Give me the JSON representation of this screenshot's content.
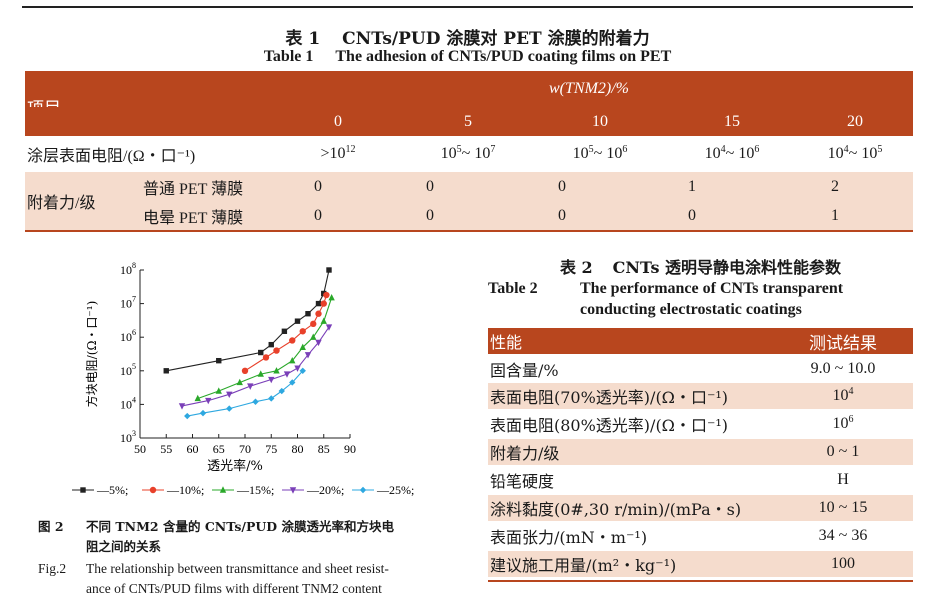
{
  "table1": {
    "caption_num_cn": "表 1",
    "caption_cn": "CNTs/PUD 涂膜对 PET 涂膜的附着力",
    "caption_num_en": "Table 1",
    "caption_en": "The adhesion of CNTs/PUD coating films on PET",
    "header_item": "项目",
    "header_group": "w(TNM2)/%",
    "columns": [
      "0",
      "5",
      "10",
      "15",
      "20"
    ],
    "resistance_label": "涂层表面电阻/(Ω・口⁻¹)",
    "resistance_values": [
      {
        "prefix": ">10",
        "exp": "12"
      },
      {
        "prefix": "10",
        "exp": "5",
        "mid": " ~ 10",
        "exp2": "7"
      },
      {
        "prefix": "10",
        "exp": "5",
        "mid": " ~ 10",
        "exp2": "6"
      },
      {
        "prefix": "10",
        "exp": "4",
        "mid": " ~ 10",
        "exp2": "6"
      },
      {
        "prefix": "10",
        "exp": "4",
        "mid": " ~ 10",
        "exp2": "5"
      }
    ],
    "adhesion_label": "附着力/级",
    "adhesion_rows": [
      {
        "label": "普通 PET 薄膜",
        "values": [
          "0",
          "0",
          "0",
          "1",
          "2"
        ]
      },
      {
        "label": "电晕 PET 薄膜",
        "values": [
          "0",
          "0",
          "0",
          "0",
          "1"
        ]
      }
    ]
  },
  "figure": {
    "caption_num_cn": "图 2",
    "caption_cn_line1": "不同 TNM2 含量的 CNTs/PUD 涂膜透光率和方块电",
    "caption_cn_line2": "阻之间的关系",
    "caption_num_en": "Fig.2",
    "caption_en_line1": "The relationship between transmittance and sheet resist-",
    "caption_en_line2": "ance of CNTs/PUD films with different TNM2 content"
  },
  "chart_data": {
    "type": "line",
    "xlabel": "透光率/%",
    "ylabel": "方块电阻/(Ω・口⁻¹)",
    "xlim": [
      50,
      90
    ],
    "ylim_log10": [
      3,
      8
    ],
    "xticks": [
      50,
      55,
      60,
      65,
      70,
      75,
      80,
      85,
      90
    ],
    "yticks_exp": [
      3,
      4,
      5,
      6,
      7,
      8
    ],
    "ytick_base": "10",
    "legend_position": "bottom",
    "series": [
      {
        "name": "5%",
        "color": "#222222",
        "marker": "square",
        "x": [
          55,
          65,
          73,
          75,
          77.5,
          80,
          82,
          84,
          85,
          86
        ],
        "y": [
          100000,
          200000,
          350000,
          600000,
          1500000,
          3000000,
          5000000,
          10000000,
          20000000,
          100000000
        ]
      },
      {
        "name": "10%",
        "color": "#e8402a",
        "marker": "circle",
        "x": [
          70,
          74,
          76,
          79,
          81,
          83,
          84,
          85,
          85.5
        ],
        "y": [
          100000,
          250000,
          400000,
          800000,
          1500000,
          2500000,
          5000000,
          10000000,
          18000000
        ]
      },
      {
        "name": "15%",
        "color": "#2aa82a",
        "marker": "triangle-up",
        "x": [
          61,
          65,
          69,
          73,
          76,
          79,
          81,
          83,
          85,
          86.5
        ],
        "y": [
          15000,
          25000,
          45000,
          80000,
          100000,
          200000,
          500000,
          1000000,
          3000000,
          15000000
        ]
      },
      {
        "name": "20%",
        "color": "#7a3fb8",
        "marker": "triangle-down",
        "x": [
          58,
          63,
          67,
          71,
          75,
          78,
          80,
          82,
          84,
          86
        ],
        "y": [
          9000,
          13000,
          20000,
          35000,
          55000,
          80000,
          120000,
          300000,
          700000,
          2000000
        ]
      },
      {
        "name": "25%",
        "color": "#2ea8e0",
        "marker": "diamond",
        "x": [
          59,
          62,
          67,
          72,
          75,
          77,
          79,
          81
        ],
        "y": [
          4500,
          5500,
          7500,
          12000,
          15000,
          25000,
          45000,
          100000
        ]
      }
    ]
  },
  "table2": {
    "caption_num_cn": "表 2",
    "caption_cn": "CNTs 透明导静电涂料性能参数",
    "caption_num_en": "Table 2",
    "caption_en_line1": "The performance of CNTs transparent",
    "caption_en_line2": "conducting electrostatic coatings",
    "header_property": "性能",
    "header_result": "测试结果",
    "rows": [
      {
        "label": "固含量/%",
        "value": "9.0 ~ 10.0",
        "band": false
      },
      {
        "label": "表面电阻(70%透光率)/(Ω・口⁻¹)",
        "value_base": "10",
        "value_exp": "4",
        "band": true
      },
      {
        "label": "表面电阻(80%透光率)/(Ω・口⁻¹)",
        "value_base": "10",
        "value_exp": "6",
        "band": false
      },
      {
        "label": "附着力/级",
        "value": "0 ~ 1",
        "band": true
      },
      {
        "label": "铅笔硬度",
        "value": "H",
        "band": false
      },
      {
        "label": "涂料黏度(0#,30 r/min)/(mPa・s)",
        "value": "10 ~ 15",
        "band": true
      },
      {
        "label": "表面张力/(mN・m⁻¹)",
        "value": "34 ~ 36",
        "band": false
      },
      {
        "label": "建议施工用量/(m²・kg⁻¹)",
        "value": "100",
        "band": true
      }
    ]
  }
}
